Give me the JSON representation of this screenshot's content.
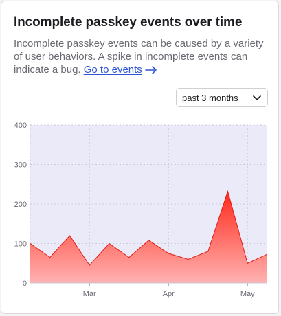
{
  "card": {
    "title": "Incomplete passkey events over time",
    "description": "Incomplete passkey events can be caused by a variety of user behaviors. A spike in incomplete events can indicate a bug.",
    "link_label": "Go to events",
    "link_icon": "arrow-right-icon"
  },
  "range_select": {
    "value": "past 3 months",
    "icon": "chevron-down-icon"
  },
  "colors": {
    "accent_fill_top": "#ff2a1a",
    "accent_fill_bottom": "#ffb2b2",
    "plot_background": "#ebeaf9",
    "link": "#2f55d4"
  },
  "chart_data": {
    "type": "area",
    "title": "",
    "xlabel": "",
    "ylabel": "",
    "ylim": [
      0,
      400
    ],
    "y_ticks": [
      0,
      100,
      200,
      300,
      400
    ],
    "x_tick_labels": [
      {
        "label": "Mar",
        "index": 3
      },
      {
        "label": "Apr",
        "index": 7
      },
      {
        "label": "May",
        "index": 11
      }
    ],
    "grid": true,
    "series": [
      {
        "values": [
          100,
          65,
          120,
          45,
          100,
          65,
          108,
          75,
          60,
          80,
          232,
          50,
          73
        ]
      }
    ]
  }
}
